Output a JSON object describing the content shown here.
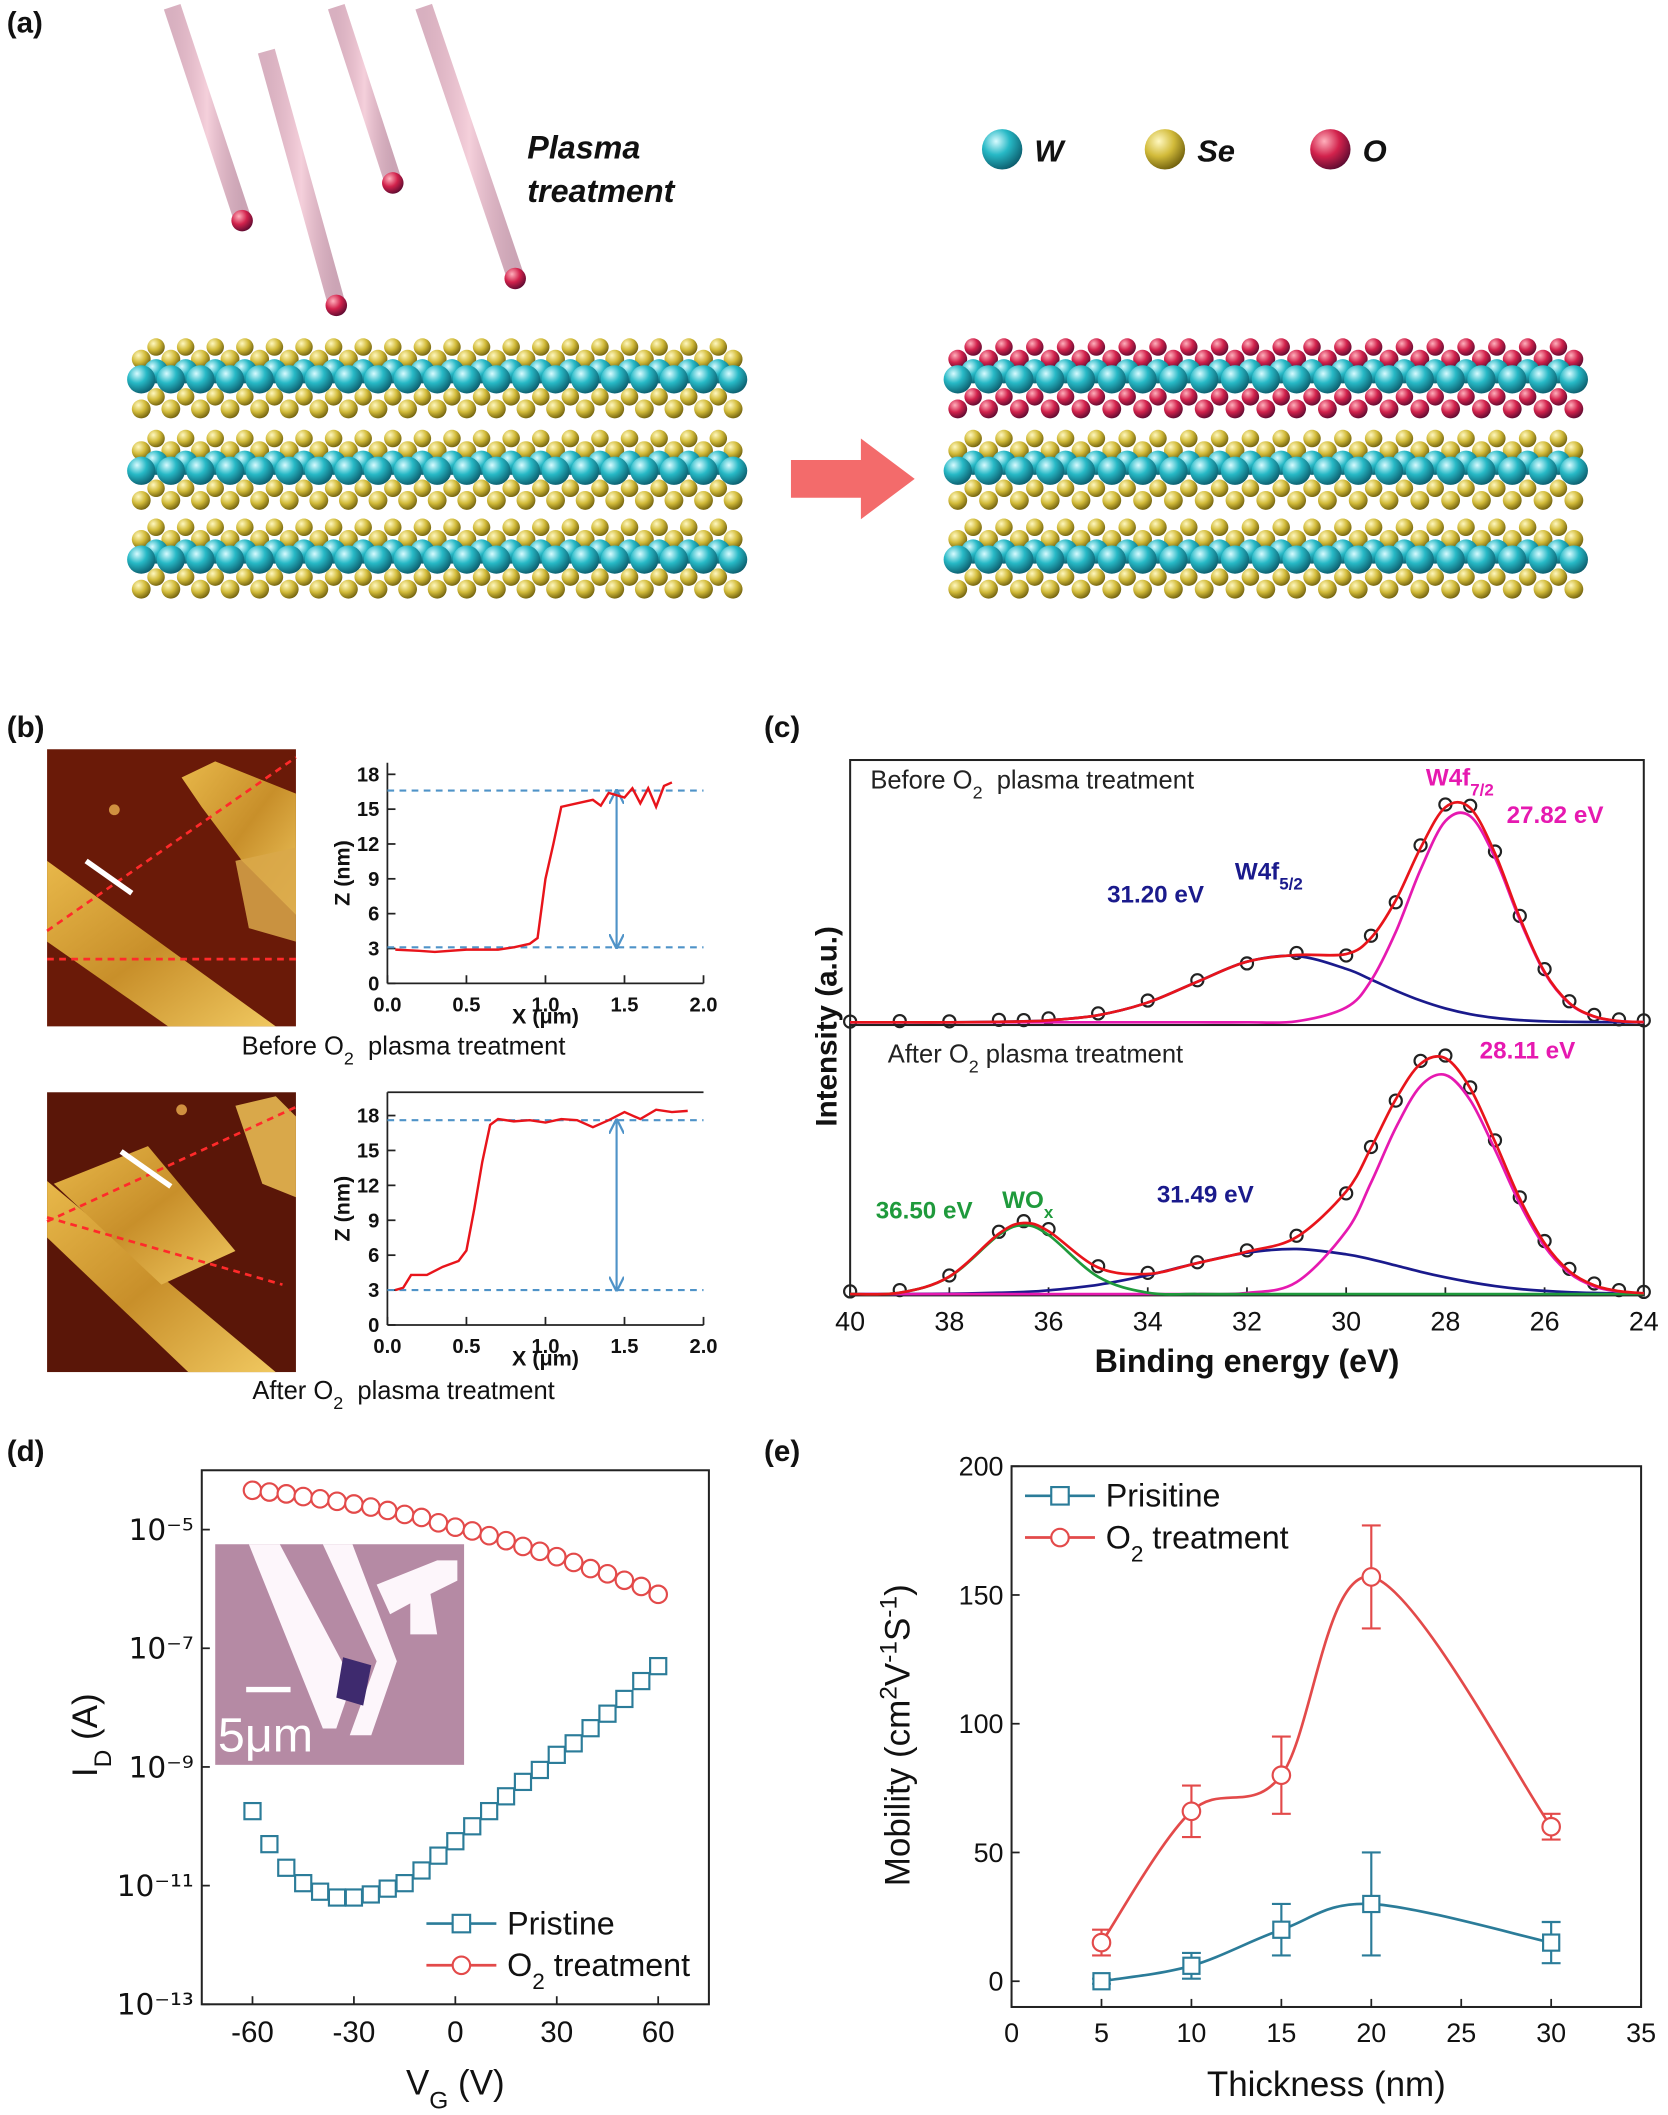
{
  "panel_labels": [
    "(a)",
    "(b)",
    "(c)",
    "(d)",
    "(e)"
  ],
  "illustration": {
    "caption": [
      "Plasma",
      "treatment"
    ],
    "legend": [
      "W",
      "Se",
      "O"
    ]
  },
  "chart_data": [
    {
      "type": "line",
      "xlabel": "X (μm)",
      "ylabel": "Z (nm)",
      "xlim": [
        0,
        2
      ],
      "xticks": [
        {
          "value": 0,
          "label": "0.0"
        },
        0.5,
        {
          "value": 1,
          "label": "1.0"
        },
        1.5,
        {
          "value": 2,
          "label": "2.0"
        }
      ],
      "ylim": [
        0,
        19
      ],
      "yticks": [
        0,
        3,
        6,
        9,
        12,
        15,
        18
      ],
      "x": [
        0.05,
        0.2,
        0.3,
        0.5,
        0.7,
        0.8,
        0.9,
        0.95,
        1.0,
        1.05,
        1.1,
        1.2,
        1.3,
        1.35,
        1.4,
        1.5,
        1.55,
        1.6,
        1.65,
        1.7,
        1.75,
        1.8
      ],
      "series": [
        {
          "color": "#e8141b",
          "values": [
            2.9,
            2.8,
            2.7,
            2.9,
            2.9,
            3.1,
            3.4,
            3.9,
            9,
            12,
            15.2,
            15.5,
            15.8,
            15.3,
            16.4,
            16,
            16.8,
            15.5,
            16.8,
            15.2,
            17,
            17.3
          ]
        }
      ],
      "reference_levels": [
        16.6,
        3.1
      ],
      "reference_color": "#4f93c8",
      "caption": [
        "Before O",
        {
          "sub": "2"
        },
        "  plasma treatment"
      ]
    },
    {
      "type": "line",
      "xlabel": "X (μm)",
      "ylabel": "Z (nm)",
      "xlim": [
        0,
        2
      ],
      "xticks": [
        {
          "value": 0,
          "label": "0.0"
        },
        0.5,
        {
          "value": 1,
          "label": "1.0"
        },
        1.5,
        {
          "value": 2,
          "label": "2.0"
        }
      ],
      "ylim": [
        0,
        20
      ],
      "yticks": [
        0,
        3,
        6,
        9,
        12,
        15,
        18
      ],
      "x": [
        0.05,
        0.1,
        0.15,
        0.25,
        0.35,
        0.45,
        0.5,
        0.55,
        0.6,
        0.65,
        0.7,
        0.8,
        0.9,
        1.0,
        1.1,
        1.2,
        1.3,
        1.4,
        1.5,
        1.6,
        1.7,
        1.8,
        1.9
      ],
      "series": [
        {
          "color": "#e8141b",
          "values": [
            3,
            3.2,
            4.3,
            4.3,
            5,
            5.5,
            6.4,
            10,
            14,
            17.2,
            17.7,
            17.5,
            17.6,
            17.4,
            17.7,
            17.6,
            17,
            17.6,
            18.3,
            17.7,
            18.5,
            18.3,
            18.4
          ]
        }
      ],
      "reference_levels": [
        17.6,
        3
      ],
      "reference_color": "#4f93c8",
      "caption": [
        "After O",
        {
          "sub": "2"
        },
        "  plasma treatment"
      ]
    },
    {
      "type": "line",
      "smooth": true,
      "ylabel": "Intensity (a.u.)",
      "xlim": [
        40,
        24
      ],
      "ylim": [
        0,
        100
      ],
      "x": [
        40,
        39,
        38,
        37,
        36.5,
        36,
        35,
        34,
        33,
        32,
        31,
        30,
        29.5,
        29,
        28.5,
        28,
        27.5,
        27,
        26.5,
        26,
        25.5,
        25,
        24.5,
        24
      ],
      "series": [
        {
          "color": "#222222",
          "marker": "circle",
          "line": false,
          "values": [
            0.3,
            0.5,
            0.4,
            1,
            0.9,
            1.6,
            3.6,
            8.8,
            17,
            23.8,
            28,
            27,
            35,
            48.5,
            71.5,
            88,
            87.5,
            69,
            43,
            21.5,
            8.5,
            3,
            1.2,
            0.8
          ]
        },
        {
          "color": "#1a1a8c",
          "values": [
            0,
            0,
            0,
            0.2,
            0.4,
            0.8,
            2.9,
            8,
            16.4,
            24.5,
            26.8,
            21.6,
            17.3,
            12.8,
            8.8,
            5.6,
            3.3,
            1.8,
            0.9,
            0.4,
            0.2,
            0.1,
            0,
            0
          ]
        },
        {
          "color": "#e619b0",
          "values": [
            0,
            0,
            0,
            0,
            0,
            0,
            0,
            0,
            0,
            0,
            0.4,
            6,
            16.8,
            36.5,
            61.7,
            81.3,
            83.3,
            66.5,
            41.4,
            20,
            7.6,
            2.3,
            0.5,
            0.1
          ]
        },
        {
          "color": "#e8141b",
          "values": [
            0,
            0,
            0,
            0.2,
            0.4,
            0.8,
            2.9,
            8,
            16.4,
            24.5,
            27.2,
            27.6,
            34.1,
            49.3,
            70.5,
            86.9,
            86.6,
            68.3,
            42.3,
            20.4,
            7.8,
            2.4,
            0.5,
            0.1
          ]
        }
      ],
      "annotations": [
        {
          "text": [
            "Before O",
            {
              "sub": "2"
            },
            "  plasma treatment"
          ],
          "color": "#222222"
        },
        {
          "text": [
            "W4f",
            {
              "sub": "7/2"
            }
          ],
          "color": "#e619b0"
        },
        {
          "text": [
            "27.82 eV"
          ],
          "color": "#e619b0"
        },
        {
          "text": [
            "31.20 eV"
          ],
          "color": "#1a1a8c"
        },
        {
          "text": [
            "W4f",
            {
              "sub": "5/2"
            }
          ],
          "color": "#1a1a8c"
        }
      ]
    },
    {
      "type": "line",
      "smooth": true,
      "xlabel": "Binding energy (eV)",
      "xlim": [
        40,
        24
      ],
      "xticks": [
        40,
        38,
        36,
        34,
        32,
        30,
        28,
        26,
        24
      ],
      "ylim": [
        0,
        100
      ],
      "x": [
        40,
        39,
        38,
        37,
        36.5,
        36,
        35,
        34,
        33,
        32,
        31,
        30,
        29.5,
        29,
        28.5,
        28,
        27.5,
        27,
        26.5,
        26,
        25.5,
        25,
        24.5,
        24
      ],
      "series": [
        {
          "color": "#222222",
          "marker": "circle",
          "line": false,
          "values": [
            1,
            1.5,
            7,
            23.5,
            27.5,
            24.5,
            10.5,
            8,
            12,
            16.5,
            22,
            38,
            55.5,
            73,
            88,
            90,
            78,
            58,
            36.5,
            20,
            9.5,
            4,
            1.5,
            0.8
          ]
        },
        {
          "color": "#1a1a8c",
          "values": [
            0,
            0,
            0.1,
            0.5,
            0.8,
            1.4,
            3.5,
            7.1,
            11.7,
            15.6,
            17,
            15,
            13.1,
            10.8,
            8.4,
            6.3,
            4.5,
            3,
            1.9,
            1.2,
            0.7,
            0.4,
            0.2,
            0.1
          ]
        },
        {
          "color": "#e619b0",
          "values": [
            0,
            0,
            0,
            0,
            0,
            0,
            0,
            0,
            0,
            0.4,
            4.5,
            23.7,
            42,
            62.7,
            78.5,
            82.7,
            73.2,
            54.5,
            34.1,
            18,
            7.9,
            2.9,
            0.9,
            0.2
          ]
        },
        {
          "color": "#1f9a3c",
          "values": [
            0,
            0.5,
            6.5,
            22.3,
            26,
            22.3,
            6.5,
            0.5,
            0,
            0,
            0,
            0,
            0,
            0,
            0,
            0,
            0,
            0,
            0,
            0,
            0,
            0,
            0,
            0
          ]
        },
        {
          "color": "#e8141b",
          "values": [
            0,
            0.5,
            6.6,
            22.8,
            26.8,
            23.7,
            10,
            7.6,
            11.7,
            16,
            21.5,
            38.7,
            55.1,
            73.5,
            86.9,
            89,
            77.7,
            57.5,
            36,
            19.2,
            8.6,
            3.3,
            1.1,
            0.3
          ]
        }
      ],
      "annotations": [
        {
          "text": [
            "After O",
            {
              "sub": "2"
            },
            " plasma treatment"
          ],
          "color": "#222222"
        },
        {
          "text": [
            "28.11 eV"
          ],
          "color": "#e619b0"
        },
        {
          "text": [
            "36.50 eV"
          ],
          "color": "#1f9a3c"
        },
        {
          "text": [
            "WO",
            {
              "sub": "x"
            }
          ],
          "color": "#1f9a3c"
        },
        {
          "text": [
            "31.49 eV"
          ],
          "color": "#1a1a8c"
        }
      ]
    },
    {
      "type": "scatter",
      "yscale": "log",
      "xlabel": [
        "V",
        {
          "sub": "G"
        },
        " (V)"
      ],
      "ylabel": [
        "I",
        {
          "sub": "D"
        },
        " (A)"
      ],
      "xlim": [
        -75,
        75
      ],
      "xticks": [
        -60,
        -30,
        0,
        30,
        60
      ],
      "ylim": [
        1e-13,
        0.0001
      ],
      "yticks": [
        {
          "value": 1e-13,
          "label": "10⁻¹³"
        },
        {
          "value": 1e-11,
          "label": "10⁻¹¹"
        },
        {
          "value": 1e-09,
          "label": "10⁻⁹"
        },
        {
          "value": 1e-07,
          "label": "10⁻⁷"
        },
        {
          "value": 1e-05,
          "label": "10⁻⁵"
        }
      ],
      "x": [
        -60,
        -55,
        -50,
        -45,
        -40,
        -35,
        -30,
        -25,
        -20,
        -15,
        -10,
        -5,
        0,
        5,
        10,
        15,
        20,
        25,
        30,
        35,
        40,
        45,
        50,
        55,
        60
      ],
      "series": [
        {
          "name": "Pristine",
          "color": "#2b7c99",
          "marker": "square",
          "values": [
            1.8e-10,
            5e-11,
            2e-11,
            1.1e-11,
            7.9e-12,
            6.3e-12,
            6.3e-12,
            7.1e-12,
            8.9e-12,
            1.1e-11,
            1.8e-11,
            3.2e-11,
            5.6e-11,
            1e-10,
            1.8e-10,
            3.2e-10,
            5.6e-10,
            8.9e-10,
            1.6e-09,
            2.5e-09,
            4.5e-09,
            7.9e-09,
            1.4e-08,
            2.8e-08,
            5e-08
          ]
        },
        {
          "name": [
            "O",
            {
              "sub": "2"
            },
            " treatment"
          ],
          "color": "#e34a4a",
          "marker": "circle",
          "values": [
            4.6e-05,
            4.3e-05,
            4e-05,
            3.6e-05,
            3.3e-05,
            3e-05,
            2.7e-05,
            2.4e-05,
            2.1e-05,
            1.8e-05,
            1.6e-05,
            1.3e-05,
            1.1e-05,
            9.5e-06,
            7.9e-06,
            6.5e-06,
            5.2e-06,
            4.3e-06,
            3.5e-06,
            2.8e-06,
            2.2e-06,
            1.8e-06,
            1.4e-06,
            1.1e-06,
            8.1e-07
          ]
        }
      ],
      "legend": "lower right",
      "inset_label": "5μm"
    },
    {
      "type": "line",
      "smooth": true,
      "xlabel": "Thickness (nm)",
      "ylabel": [
        "Mobility (cm",
        {
          "sup": "2"
        },
        "V",
        {
          "sup": "-1"
        },
        "S",
        {
          "sup": "-1"
        },
        ")"
      ],
      "xlim": [
        0,
        35
      ],
      "xticks": [
        0,
        5,
        10,
        15,
        20,
        25,
        30,
        35
      ],
      "ylim": [
        -10,
        200
      ],
      "yticks": [
        0,
        50,
        100,
        150,
        200
      ],
      "x": [
        5,
        10,
        15,
        20,
        30
      ],
      "series": [
        {
          "name": "Prisitine",
          "color": "#2b7c99",
          "marker": "square",
          "values": [
            0,
            6,
            20,
            30,
            15
          ],
          "errors": [
            1,
            5,
            10,
            20,
            8
          ]
        },
        {
          "name": [
            "O",
            {
              "sub": "2"
            },
            " treatment"
          ],
          "color": "#e34a4a",
          "marker": "circle",
          "values": [
            15,
            66,
            80,
            157,
            60
          ],
          "errors": [
            5,
            10,
            15,
            20,
            5
          ]
        }
      ],
      "legend": "upper left"
    }
  ]
}
